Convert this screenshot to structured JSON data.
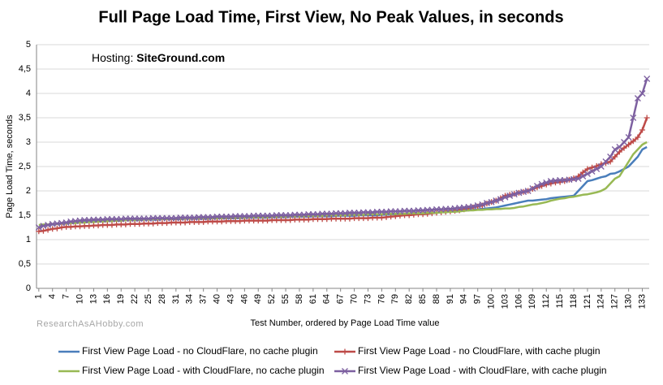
{
  "chart_data": {
    "type": "line",
    "title": "Full Page Load Time, First View, No Peak Values, in seconds",
    "annotation": {
      "label": "Hosting:",
      "host": "SiteGround.com"
    },
    "watermark": "ResearchAsAHobby.com",
    "x_label": "Test Number, ordered by Page Load Time value",
    "y_label": "Page Load Time, seconds",
    "x": [
      1,
      2,
      3,
      4,
      5,
      6,
      7,
      8,
      9,
      10,
      11,
      12,
      13,
      14,
      15,
      16,
      17,
      18,
      19,
      20,
      21,
      22,
      23,
      24,
      25,
      26,
      27,
      28,
      29,
      30,
      31,
      32,
      33,
      34,
      35,
      36,
      37,
      38,
      39,
      40,
      41,
      42,
      43,
      44,
      45,
      46,
      47,
      48,
      49,
      50,
      51,
      52,
      53,
      54,
      55,
      56,
      57,
      58,
      59,
      60,
      61,
      62,
      63,
      64,
      65,
      66,
      67,
      68,
      69,
      70,
      71,
      72,
      73,
      74,
      75,
      76,
      77,
      78,
      79,
      80,
      81,
      82,
      83,
      84,
      85,
      86,
      87,
      88,
      89,
      90,
      91,
      92,
      93,
      94,
      95,
      96,
      97,
      98,
      99,
      100,
      101,
      102,
      103,
      104,
      105,
      106,
      107,
      108,
      109,
      110,
      111,
      112,
      113,
      114,
      115,
      116,
      117,
      118,
      119,
      120,
      121,
      122,
      123,
      124,
      125,
      126,
      127,
      128,
      129,
      130,
      131,
      132,
      133,
      134
    ],
    "xlim": [
      0.5,
      134.5
    ],
    "xticks": [
      1,
      4,
      7,
      10,
      13,
      16,
      19,
      22,
      25,
      28,
      31,
      34,
      37,
      40,
      43,
      46,
      49,
      52,
      55,
      58,
      61,
      64,
      67,
      70,
      73,
      76,
      79,
      82,
      85,
      88,
      91,
      94,
      97,
      100,
      103,
      106,
      109,
      112,
      115,
      118,
      121,
      124,
      127,
      130,
      133
    ],
    "ylim": [
      0,
      5
    ],
    "yticks": [
      0,
      {
        "value": 0.5,
        "label": "0,5"
      },
      1,
      {
        "value": 1.5,
        "label": "1,5"
      },
      2,
      {
        "value": 2.5,
        "label": "2,5"
      },
      3,
      {
        "value": 3.5,
        "label": "3,5"
      },
      4,
      {
        "value": 4.5,
        "label": "4,5"
      },
      5
    ],
    "grid": true,
    "legend": "bottom",
    "series": [
      {
        "name": "First View Page Load - no CloudFlare, no cache plugin",
        "color": "#4a7ebb",
        "marker": "none",
        "values": [
          1.25,
          1.29,
          1.3,
          1.31,
          1.32,
          1.33,
          1.34,
          1.35,
          1.35,
          1.36,
          1.36,
          1.37,
          1.37,
          1.38,
          1.38,
          1.38,
          1.39,
          1.39,
          1.39,
          1.4,
          1.4,
          1.4,
          1.4,
          1.41,
          1.41,
          1.41,
          1.41,
          1.42,
          1.42,
          1.42,
          1.42,
          1.42,
          1.43,
          1.43,
          1.43,
          1.43,
          1.43,
          1.43,
          1.44,
          1.44,
          1.44,
          1.44,
          1.44,
          1.44,
          1.44,
          1.45,
          1.45,
          1.45,
          1.45,
          1.45,
          1.45,
          1.46,
          1.46,
          1.46,
          1.46,
          1.47,
          1.47,
          1.47,
          1.47,
          1.47,
          1.48,
          1.48,
          1.48,
          1.48,
          1.48,
          1.49,
          1.49,
          1.49,
          1.49,
          1.49,
          1.5,
          1.5,
          1.5,
          1.5,
          1.5,
          1.51,
          1.51,
          1.52,
          1.52,
          1.53,
          1.53,
          1.53,
          1.54,
          1.54,
          1.54,
          1.55,
          1.55,
          1.55,
          1.56,
          1.57,
          1.58,
          1.58,
          1.59,
          1.6,
          1.6,
          1.61,
          1.62,
          1.63,
          1.64,
          1.65,
          1.66,
          1.68,
          1.7,
          1.72,
          1.74,
          1.76,
          1.78,
          1.8,
          1.8,
          1.81,
          1.82,
          1.83,
          1.85,
          1.86,
          1.87,
          1.88,
          1.89,
          1.9,
          2.0,
          2.1,
          2.2,
          2.22,
          2.25,
          2.28,
          2.3,
          2.35,
          2.36,
          2.4,
          2.45,
          2.5,
          2.6,
          2.7,
          2.85,
          2.9
        ]
      },
      {
        "name": "First View Page Load - no CloudFlare, with cache plugin",
        "color": "#be4b48",
        "marker": "plus",
        "values": [
          1.17,
          1.18,
          1.2,
          1.22,
          1.23,
          1.25,
          1.26,
          1.26,
          1.27,
          1.27,
          1.28,
          1.28,
          1.29,
          1.29,
          1.3,
          1.3,
          1.3,
          1.31,
          1.31,
          1.31,
          1.32,
          1.32,
          1.32,
          1.33,
          1.33,
          1.33,
          1.34,
          1.34,
          1.34,
          1.35,
          1.35,
          1.35,
          1.35,
          1.36,
          1.36,
          1.36,
          1.36,
          1.37,
          1.37,
          1.37,
          1.37,
          1.38,
          1.38,
          1.38,
          1.38,
          1.39,
          1.39,
          1.39,
          1.39,
          1.39,
          1.39,
          1.4,
          1.4,
          1.4,
          1.4,
          1.4,
          1.41,
          1.41,
          1.41,
          1.41,
          1.42,
          1.42,
          1.42,
          1.42,
          1.43,
          1.43,
          1.43,
          1.43,
          1.43,
          1.44,
          1.44,
          1.44,
          1.44,
          1.45,
          1.45,
          1.45,
          1.46,
          1.47,
          1.48,
          1.49,
          1.5,
          1.5,
          1.51,
          1.52,
          1.52,
          1.53,
          1.54,
          1.55,
          1.56,
          1.57,
          1.58,
          1.59,
          1.6,
          1.62,
          1.64,
          1.66,
          1.68,
          1.7,
          1.74,
          1.77,
          1.8,
          1.85,
          1.9,
          1.92,
          1.94,
          1.96,
          1.98,
          2.0,
          2.04,
          2.07,
          2.1,
          2.13,
          2.15,
          2.17,
          2.18,
          2.2,
          2.23,
          2.26,
          2.3,
          2.38,
          2.45,
          2.48,
          2.51,
          2.55,
          2.57,
          2.6,
          2.7,
          2.8,
          2.88,
          2.95,
          3.02,
          3.1,
          3.25,
          3.5
        ]
      },
      {
        "name": "First View Page Load - with CloudFlare, no cache plugin",
        "color": "#98b954",
        "marker": "none",
        "values": [
          1.3,
          1.31,
          1.31,
          1.32,
          1.32,
          1.33,
          1.33,
          1.34,
          1.34,
          1.35,
          1.35,
          1.36,
          1.36,
          1.37,
          1.37,
          1.38,
          1.38,
          1.39,
          1.39,
          1.4,
          1.4,
          1.4,
          1.41,
          1.41,
          1.41,
          1.42,
          1.42,
          1.42,
          1.42,
          1.43,
          1.43,
          1.43,
          1.43,
          1.43,
          1.44,
          1.44,
          1.44,
          1.44,
          1.44,
          1.44,
          1.44,
          1.45,
          1.45,
          1.45,
          1.45,
          1.45,
          1.46,
          1.46,
          1.46,
          1.46,
          1.46,
          1.47,
          1.47,
          1.47,
          1.47,
          1.48,
          1.48,
          1.48,
          1.48,
          1.49,
          1.49,
          1.49,
          1.49,
          1.5,
          1.5,
          1.5,
          1.5,
          1.5,
          1.51,
          1.51,
          1.51,
          1.51,
          1.52,
          1.52,
          1.52,
          1.52,
          1.53,
          1.53,
          1.53,
          1.53,
          1.53,
          1.54,
          1.54,
          1.54,
          1.54,
          1.55,
          1.55,
          1.55,
          1.56,
          1.56,
          1.57,
          1.57,
          1.58,
          1.59,
          1.6,
          1.6,
          1.61,
          1.61,
          1.62,
          1.62,
          1.63,
          1.63,
          1.64,
          1.64,
          1.65,
          1.67,
          1.68,
          1.7,
          1.72,
          1.73,
          1.75,
          1.77,
          1.8,
          1.82,
          1.84,
          1.85,
          1.87,
          1.88,
          1.9,
          1.92,
          1.93,
          1.95,
          1.97,
          2.0,
          2.05,
          2.15,
          2.25,
          2.3,
          2.45,
          2.6,
          2.75,
          2.85,
          2.95,
          3.0
        ]
      },
      {
        "name": "First View Page Load - with CloudFlare, with cache plugin",
        "color": "#7d60a0",
        "marker": "x",
        "values": [
          1.25,
          1.28,
          1.3,
          1.32,
          1.33,
          1.34,
          1.35,
          1.37,
          1.38,
          1.39,
          1.4,
          1.4,
          1.41,
          1.41,
          1.41,
          1.42,
          1.42,
          1.42,
          1.42,
          1.43,
          1.43,
          1.43,
          1.43,
          1.43,
          1.43,
          1.44,
          1.44,
          1.44,
          1.44,
          1.44,
          1.44,
          1.45,
          1.45,
          1.45,
          1.45,
          1.46,
          1.46,
          1.46,
          1.46,
          1.47,
          1.47,
          1.47,
          1.47,
          1.48,
          1.48,
          1.48,
          1.48,
          1.49,
          1.49,
          1.49,
          1.49,
          1.49,
          1.5,
          1.5,
          1.5,
          1.5,
          1.51,
          1.51,
          1.51,
          1.52,
          1.52,
          1.52,
          1.53,
          1.53,
          1.53,
          1.54,
          1.54,
          1.54,
          1.55,
          1.55,
          1.55,
          1.56,
          1.56,
          1.56,
          1.57,
          1.57,
          1.57,
          1.58,
          1.58,
          1.58,
          1.59,
          1.59,
          1.59,
          1.6,
          1.6,
          1.61,
          1.61,
          1.62,
          1.62,
          1.63,
          1.63,
          1.64,
          1.65,
          1.66,
          1.67,
          1.68,
          1.7,
          1.72,
          1.75,
          1.77,
          1.8,
          1.83,
          1.87,
          1.9,
          1.93,
          1.96,
          1.98,
          2.0,
          2.05,
          2.1,
          2.14,
          2.17,
          2.2,
          2.21,
          2.22,
          2.22,
          2.23,
          2.24,
          2.25,
          2.3,
          2.35,
          2.4,
          2.45,
          2.5,
          2.6,
          2.7,
          2.85,
          2.9,
          3.0,
          3.1,
          3.5,
          3.9,
          4.0,
          4.3
        ]
      }
    ]
  }
}
